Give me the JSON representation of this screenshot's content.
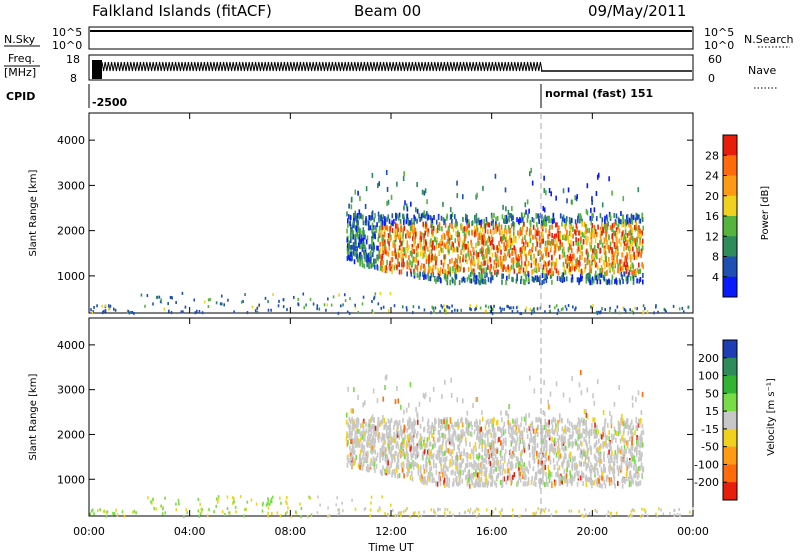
{
  "header": {
    "station": "Falkland Islands (fitACF)",
    "beam": "Beam 00",
    "date": "09/May/2011"
  },
  "strips": {
    "nsky": {
      "label": "N.Sky",
      "left_ticks": [
        "10^5",
        "10^0"
      ],
      "right_label": "N.Search",
      "right_ticks": [
        "10^5",
        "10^0"
      ]
    },
    "freq": {
      "label_line1": "Freq.",
      "label_line2": "[MHz]",
      "left_ticks": [
        "18",
        "8"
      ],
      "right_label": "Nave",
      "right_ticks": [
        "60",
        "0"
      ]
    },
    "cpid": {
      "label": "CPID",
      "mode_a": "-2500",
      "mode_b": "normal (fast) 151"
    }
  },
  "chart_data": [
    {
      "type": "heatmap",
      "panel": "power",
      "ylabel": "Slant Range [km]",
      "y_ticks": [
        1000,
        2000,
        3000,
        4000
      ],
      "ylim": [
        180,
        4600
      ],
      "x_ticks": [
        "00:00",
        "04:00",
        "08:00",
        "12:00",
        "16:00",
        "20:00",
        "00:00"
      ],
      "xlim_hours": [
        0,
        24
      ],
      "colorbar": {
        "label": "Power [dB]",
        "ticks": [
          "4",
          "8",
          "12",
          "16",
          "20",
          "24",
          "28"
        ],
        "colors": [
          "#0a1aff",
          "#1e50b4",
          "#2d8c5a",
          "#55b43c",
          "#f0d21e",
          "#ff9a14",
          "#ff6a0a",
          "#e61e0a"
        ]
      },
      "mode_change_hour": 18.0,
      "echo_region": {
        "start_hour": 10.2,
        "end_hour": 22.0,
        "range_km": [
          900,
          3600
        ]
      }
    },
    {
      "type": "heatmap",
      "panel": "velocity",
      "xlabel": "Time UT",
      "ylabel": "Slant Range [km]",
      "y_ticks": [
        1000,
        2000,
        3000,
        4000
      ],
      "ylim": [
        180,
        4600
      ],
      "x_ticks": [
        "00:00",
        "04:00",
        "08:00",
        "12:00",
        "16:00",
        "20:00",
        "00:00"
      ],
      "xlim_hours": [
        0,
        24
      ],
      "colorbar": {
        "label": "Velocity [m s⁻¹]",
        "ticks": [
          "200",
          "100",
          "50",
          "15",
          "-15",
          "-50",
          "-100",
          "-200"
        ],
        "colors": [
          "#1e3cb4",
          "#2d8c5a",
          "#32b432",
          "#78dc46",
          "#c8c8c8",
          "#f0d21e",
          "#ff9a14",
          "#ff6a0a",
          "#e61e0a"
        ]
      },
      "mode_change_hour": 18.0,
      "echo_region": {
        "start_hour": 10.2,
        "end_hour": 22.0,
        "range_km": [
          900,
          3600
        ]
      }
    }
  ]
}
